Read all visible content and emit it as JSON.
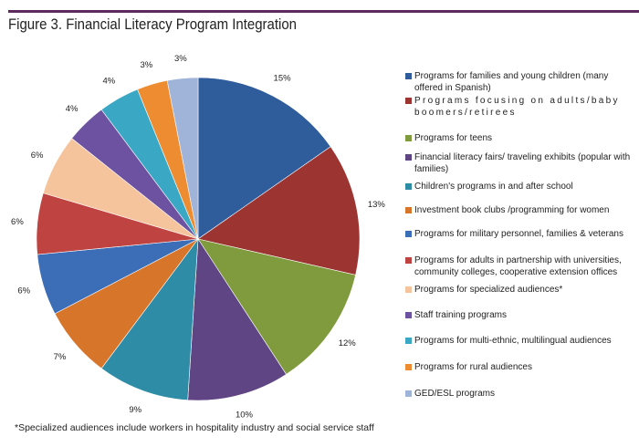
{
  "title": "Figure 3. Financial Literacy Program Integration",
  "footnote": "*Specialized audiences include workers in hospitality industry and social service staff",
  "chart_data": {
    "type": "pie",
    "title": "Figure 3. Financial Literacy Program Integration",
    "legend_position": "right",
    "start": "top, clockwise",
    "slices": [
      {
        "label": "Programs for families and young children (many offered in Spanish)",
        "value": 15,
        "data_label": "15%",
        "color": "#2f5d9c"
      },
      {
        "label": "Programs focusing on adults/baby boomers/retirees",
        "value": 13,
        "data_label": "13%",
        "color": "#9c3532"
      },
      {
        "label": "Programs for teens",
        "value": 12,
        "data_label": "12%",
        "color": "#7f9b3d"
      },
      {
        "label": "Financial literacy fairs/ traveling exhibits (popular with families)",
        "value": 10,
        "data_label": "10%",
        "color": "#5f4584"
      },
      {
        "label": "Children's programs in and after school",
        "value": 9,
        "data_label": "9%",
        "color": "#2f8ca6"
      },
      {
        "label": "Investment book clubs /programming for women",
        "value": 7,
        "data_label": "7%",
        "color": "#d7762b"
      },
      {
        "label": "Programs for military personnel, families & veterans",
        "value": 6,
        "data_label": "6%",
        "color": "#3b6eb6"
      },
      {
        "label": "Programs for adults in partnership with universities, community colleges, cooperative extension offices",
        "value": 6,
        "data_label": "6%",
        "color": "#bf4441"
      },
      {
        "label": "Programs for specialized audiences*",
        "value": 6,
        "data_label": "6%",
        "color": "#f5c49d"
      },
      {
        "label": "Staff training programs",
        "value": 4,
        "data_label": "4%",
        "color": "#6c52a0"
      },
      {
        "label": "Programs for multi-ethnic, multilingual audiences",
        "value": 4,
        "data_label": "4%",
        "color": "#3aa7c5"
      },
      {
        "label": "Programs for rural audiences",
        "value": 3,
        "data_label": "3%",
        "color": "#ee8c32"
      },
      {
        "label": "GED/ESL programs",
        "value": 3,
        "data_label": "3%",
        "color": "#a0b3d8"
      }
    ]
  }
}
